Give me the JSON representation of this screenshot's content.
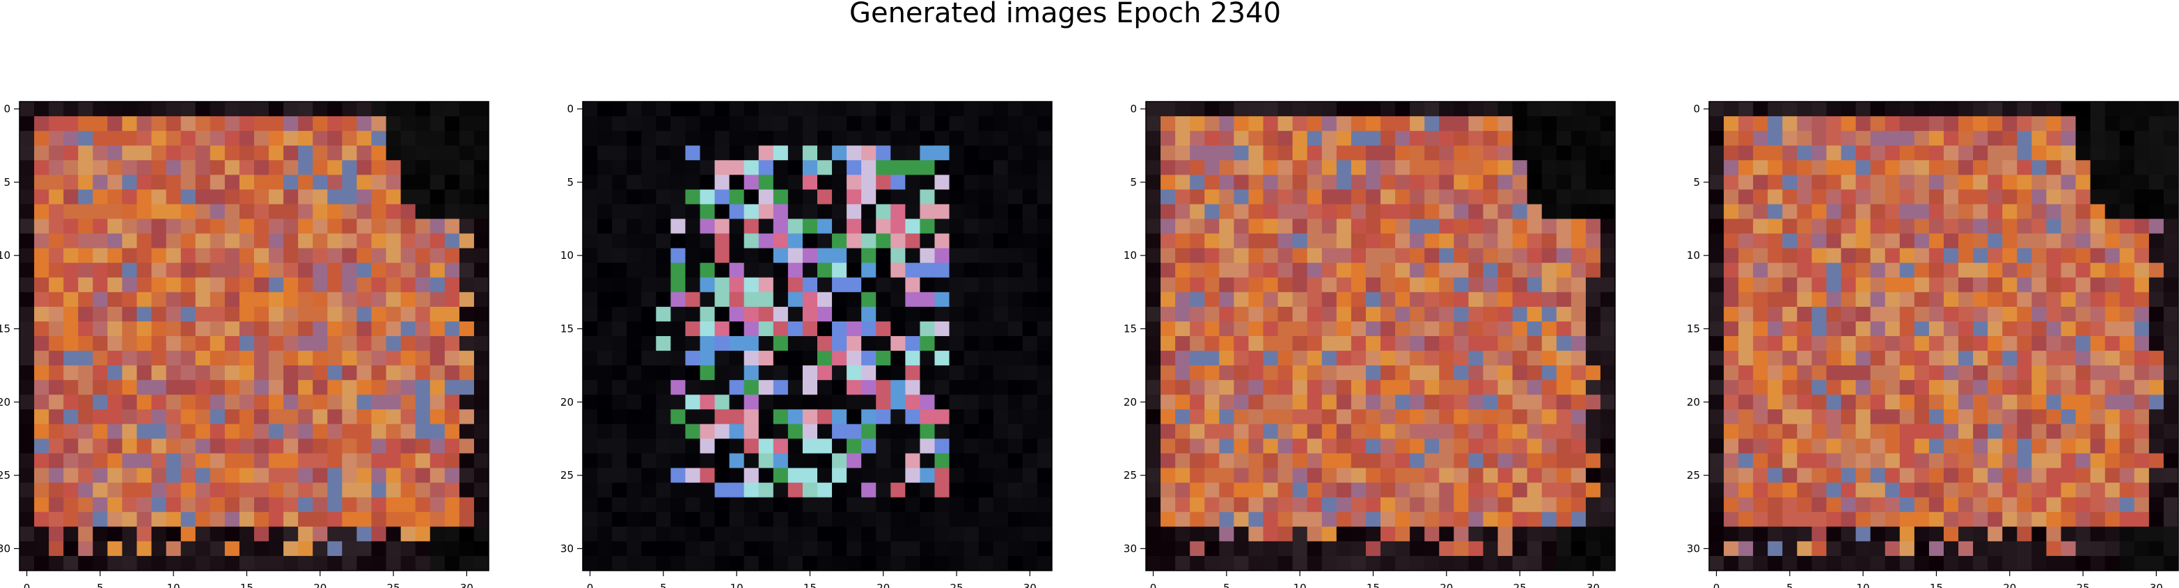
{
  "figure": {
    "title": "Generated images Epoch 2340"
  },
  "chart_data": [
    {
      "type": "heatmap",
      "panel": 1,
      "description": "32x32 generated image",
      "grid": [
        32,
        32
      ],
      "xticks": [
        0,
        5,
        10,
        15,
        20,
        25,
        30
      ],
      "yticks": [
        0,
        5,
        10,
        15,
        20,
        25,
        30
      ],
      "xlim": [
        -0.5,
        31.5
      ],
      "ylim": [
        31.5,
        -0.5
      ]
    },
    {
      "type": "heatmap",
      "panel": 2,
      "description": "32x32 generated image",
      "grid": [
        32,
        32
      ],
      "xticks": [
        0,
        5,
        10,
        15,
        20,
        25,
        30
      ],
      "yticks": [
        0,
        5,
        10,
        15,
        20,
        25,
        30
      ],
      "xlim": [
        -0.5,
        31.5
      ],
      "ylim": [
        31.5,
        -0.5
      ]
    },
    {
      "type": "heatmap",
      "panel": 3,
      "description": "32x32 generated image",
      "grid": [
        32,
        32
      ],
      "xticks": [
        0,
        5,
        10,
        15,
        20,
        25,
        30
      ],
      "yticks": [
        0,
        5,
        10,
        15,
        20,
        25,
        30
      ],
      "xlim": [
        -0.5,
        31.5
      ],
      "ylim": [
        31.5,
        -0.5
      ]
    },
    {
      "type": "heatmap",
      "panel": 4,
      "description": "32x32 generated image",
      "grid": [
        32,
        32
      ],
      "xticks": [
        0,
        5,
        10,
        15,
        20,
        25,
        30
      ],
      "yticks": [
        0,
        5,
        10,
        15,
        20,
        25,
        30
      ],
      "xlim": [
        -0.5,
        31.5
      ],
      "ylim": [
        31.5,
        -0.5
      ]
    }
  ]
}
